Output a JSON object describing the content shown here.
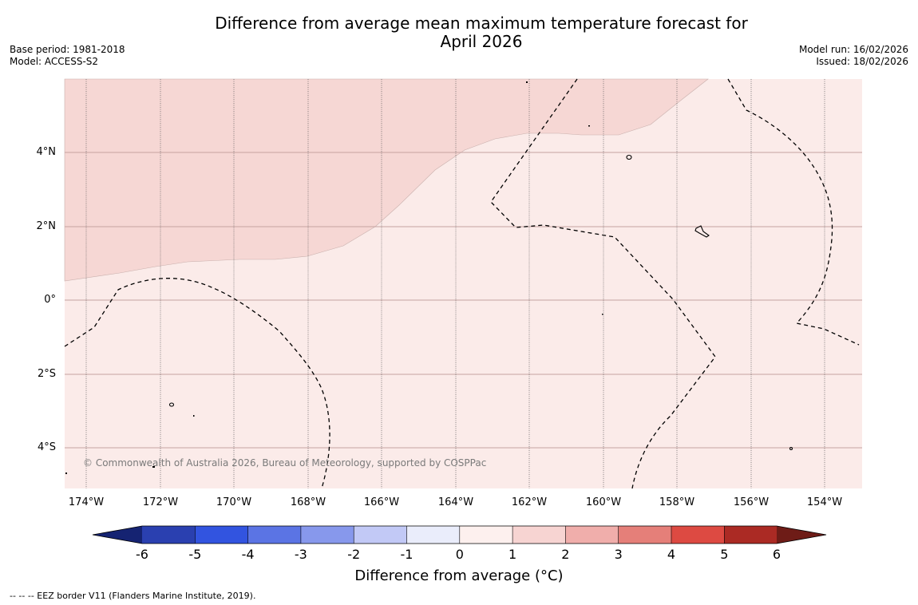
{
  "title": {
    "line1": "Difference from average mean maximum temperature forecast for",
    "line2": "April 2026"
  },
  "meta_left": {
    "base_period": "Base period: 1981-2018",
    "model": "Model: ACCESS-S2"
  },
  "meta_right": {
    "model_run": "Model run: 16/02/2026",
    "issued": "Issued: 18/02/2026"
  },
  "map": {
    "lat_labels": [
      "4°N",
      "2°N",
      "0°",
      "2°S",
      "4°S"
    ],
    "lon_labels": [
      "174°W",
      "172°W",
      "170°W",
      "168°W",
      "166°W",
      "164°W",
      "162°W",
      "160°W",
      "158°W",
      "156°W",
      "154°W"
    ],
    "copyright": "© Commonwealth of Australia 2026, Bureau of Meteorology, supported by COSPPac",
    "colors": {
      "anomaly_0_1": "#fbebe9",
      "anomaly_1_2": "#f6d7d4"
    }
  },
  "colorbar": {
    "ticks": [
      "-6",
      "-5",
      "-4",
      "-3",
      "-2",
      "-1",
      "0",
      "1",
      "2",
      "3",
      "4",
      "5",
      "6"
    ],
    "colors": [
      "#152372",
      "#2a40b0",
      "#3254e0",
      "#5b74e4",
      "#8798ec",
      "#c2c9f6",
      "#eaedfb",
      "#fdf0ee",
      "#f7d4d2",
      "#f0aeab",
      "#e57f79",
      "#dd4a42",
      "#ab2a24",
      "#6e1c17"
    ],
    "title": "Difference from average (°C)"
  },
  "footer": "--  --  -- EEZ border V11 (Flanders Marine Institute, 2019)."
}
